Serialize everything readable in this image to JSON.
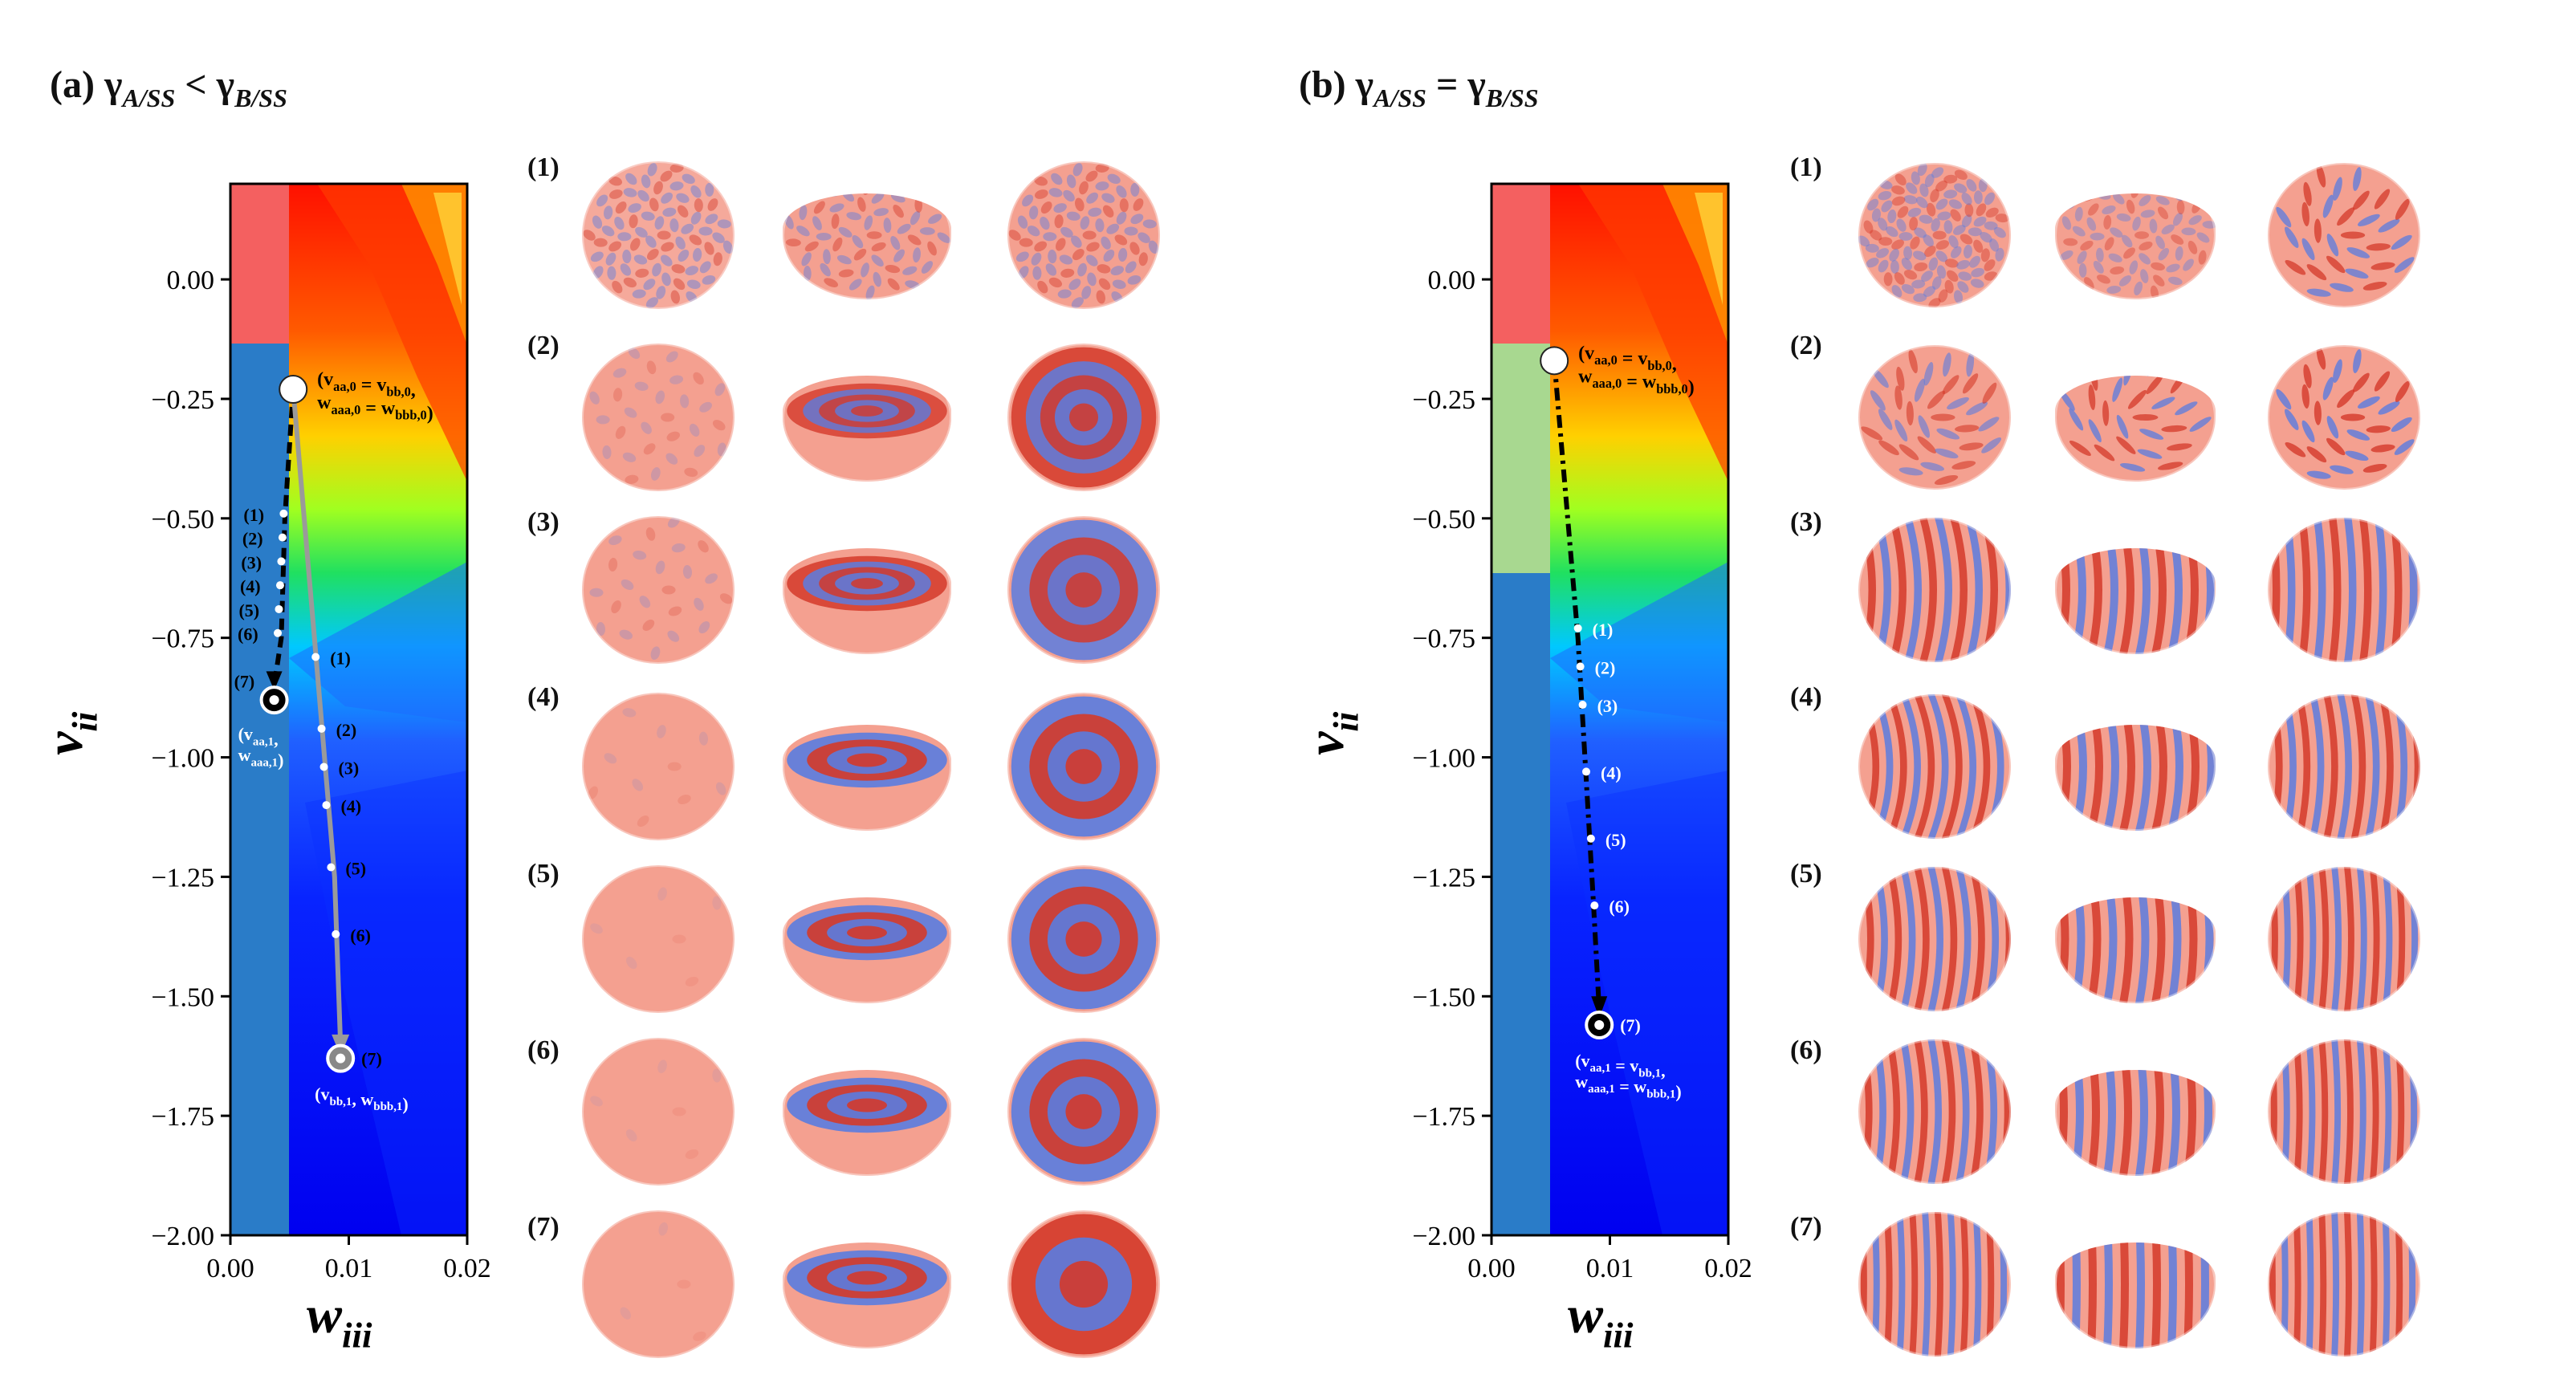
{
  "figure": {
    "panels": [
      {
        "id": "a",
        "title": {
          "prefix": "(a) ",
          "left_gamma": "γ",
          "left_sub": "A/SS",
          "relation": " < ",
          "right_gamma": "γ",
          "right_sub": "B/SS"
        },
        "xlabel": {
          "main": "w",
          "sub": "iii"
        },
        "ylabel": {
          "main": "v",
          "sub": "ii"
        },
        "xticks": [
          "0.00",
          "0.01",
          "0.02"
        ],
        "yticks": [
          "0.00",
          "−0.25",
          "−0.50",
          "−0.75",
          "−1.00",
          "−1.25",
          "−1.50",
          "−1.75",
          "−2.00"
        ],
        "start_label": {
          "line1": "(v",
          "l1a": "aa,0",
          "l1b": " = v",
          "l1c": "bb,0",
          "l1d": ",",
          "line2": "w",
          "l2a": "aaa,0",
          "l2b": " = w",
          "l2c": "bbb,0",
          "l2d": ")"
        },
        "end_label_black": {
          "line1": "(v",
          "l1a": "aa,1",
          "l1b": ",",
          "line2": "w",
          "l2a": "aaa,1",
          "l2b": ")"
        },
        "end_label_gray": {
          "t1": "(v",
          "t1a": "bb,1",
          "t1b": ", w",
          "t1c": "bbb,1",
          "t1d": ")"
        },
        "black_path_labels": [
          "(1)",
          "(2)",
          "(3)",
          "(4)",
          "(5)",
          "(6)",
          "(7)"
        ],
        "gray_path_labels": [
          "(1)",
          "(2)",
          "(3)",
          "(4)",
          "(5)",
          "(6)",
          "(7)"
        ],
        "row_labels": [
          "(1)",
          "(2)",
          "(3)",
          "(4)",
          "(5)",
          "(6)",
          "(7)"
        ]
      },
      {
        "id": "b",
        "title": {
          "prefix": "(b) ",
          "left_gamma": "γ",
          "left_sub": "A/SS",
          "relation": " = ",
          "right_gamma": "γ",
          "right_sub": "B/SS"
        },
        "xlabel": {
          "main": "w",
          "sub": "iii"
        },
        "ylabel": {
          "main": "v",
          "sub": "ii"
        },
        "xticks": [
          "0.00",
          "0.01",
          "0.02"
        ],
        "yticks": [
          "0.00",
          "−0.25",
          "−0.50",
          "−0.75",
          "−1.00",
          "−1.25",
          "−1.50",
          "−1.75",
          "−2.00"
        ],
        "start_label": {
          "line1": "(v",
          "l1a": "aa,0",
          "l1b": " = v",
          "l1c": "bb,0",
          "l1d": ",",
          "line2": "w",
          "l2a": "aaa,0",
          "l2b": " = w",
          "l2c": "bbb,0",
          "l2d": ")"
        },
        "end_label": {
          "line1": "(v",
          "l1a": "aa,1",
          "l1b": " = v",
          "l1c": "bb,1",
          "l1d": ",",
          "line2": "w",
          "l2a": "aaa,1",
          "l2b": " = w",
          "l2c": "bbb,1",
          "l2d": ")"
        },
        "path_labels": [
          "(1)",
          "(2)",
          "(3)",
          "(4)",
          "(5)",
          "(6)",
          "(7)"
        ],
        "row_labels": [
          "(1)",
          "(2)",
          "(3)",
          "(4)",
          "(5)",
          "(6)",
          "(7)"
        ]
      }
    ]
  },
  "colors": {
    "red": "#d43a2a",
    "blue": "#5a7ce0",
    "pink": "#f4a090",
    "contour_red": "#ff1a00",
    "contour_blue": "#0000ff",
    "light_green": "#a8d890",
    "steel_blue": "#2a7cc8",
    "salmon": "#f46060"
  }
}
